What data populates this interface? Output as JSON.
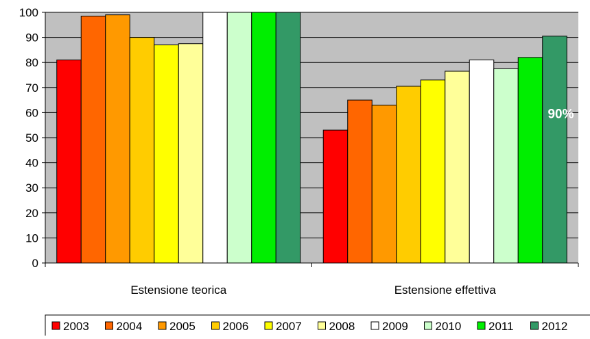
{
  "chart_data": {
    "type": "bar",
    "title": "",
    "xlabel": "",
    "ylabel": "",
    "ylim": [
      0,
      100
    ],
    "yticks": [
      0,
      10,
      20,
      30,
      40,
      50,
      60,
      70,
      80,
      90,
      100
    ],
    "grid": true,
    "legend_position": "bottom",
    "plot_background": "#c0c0c0",
    "categories": [
      "Estensione teorica",
      "Estensione effettiva"
    ],
    "series": [
      {
        "name": "2003",
        "color": "#ff0000",
        "values": [
          81,
          53
        ]
      },
      {
        "name": "2004",
        "color": "#ff6600",
        "values": [
          98.5,
          65
        ]
      },
      {
        "name": "2005",
        "color": "#ff9900",
        "values": [
          99,
          63
        ]
      },
      {
        "name": "2006",
        "color": "#ffcc00",
        "values": [
          90,
          70.5
        ]
      },
      {
        "name": "2007",
        "color": "#ffff00",
        "values": [
          87,
          73
        ]
      },
      {
        "name": "2008",
        "color": "#ffff99",
        "values": [
          87.5,
          76.5
        ]
      },
      {
        "name": "2009",
        "color": "#ffffff",
        "values": [
          100,
          81
        ]
      },
      {
        "name": "2010",
        "color": "#ccffcc",
        "values": [
          100,
          77.5
        ]
      },
      {
        "name": "2011",
        "color": "#00ee00",
        "values": [
          100,
          82
        ]
      },
      {
        "name": "2012",
        "color": "#339966",
        "values": [
          100,
          90.5
        ]
      }
    ],
    "annotations": [
      {
        "series": "2012",
        "category": "Estensione effettiva",
        "text": "90%"
      }
    ]
  }
}
